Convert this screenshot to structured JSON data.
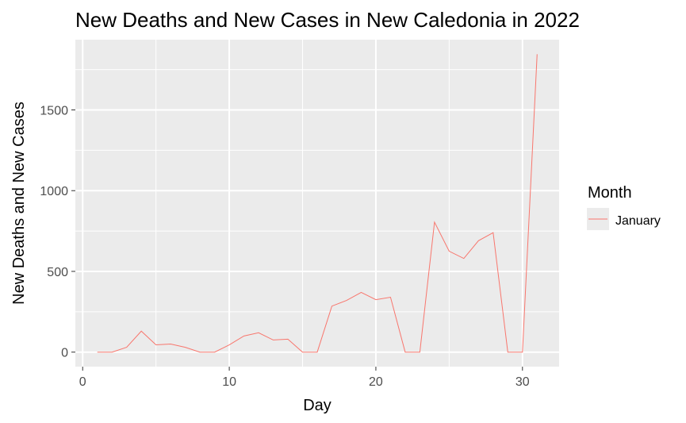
{
  "chart_data": {
    "type": "line",
    "title": "New Deaths and New Cases in New Caledonia in 2022",
    "xlabel": "Day",
    "ylabel": "New Deaths and New Cases",
    "xlim": [
      -0.5,
      32.5
    ],
    "ylim": [
      -90,
      1935
    ],
    "x_ticks": [
      0,
      10,
      20,
      30
    ],
    "y_ticks": [
      0,
      500,
      1000,
      1500
    ],
    "grid": true,
    "legend": {
      "title": "Month",
      "position": "right"
    },
    "series": [
      {
        "name": "January",
        "color": "#F8766D",
        "x": [
          1,
          2,
          3,
          4,
          5,
          6,
          7,
          8,
          9,
          10,
          11,
          12,
          13,
          14,
          15,
          16,
          17,
          18,
          19,
          20,
          21,
          22,
          23,
          24,
          25,
          26,
          27,
          28,
          29,
          30,
          31
        ],
        "values": [
          0,
          0,
          30,
          130,
          45,
          50,
          30,
          0,
          0,
          45,
          100,
          120,
          75,
          80,
          0,
          0,
          285,
          320,
          370,
          325,
          340,
          0,
          0,
          805,
          625,
          580,
          690,
          740,
          0,
          0,
          1845
        ]
      }
    ]
  }
}
